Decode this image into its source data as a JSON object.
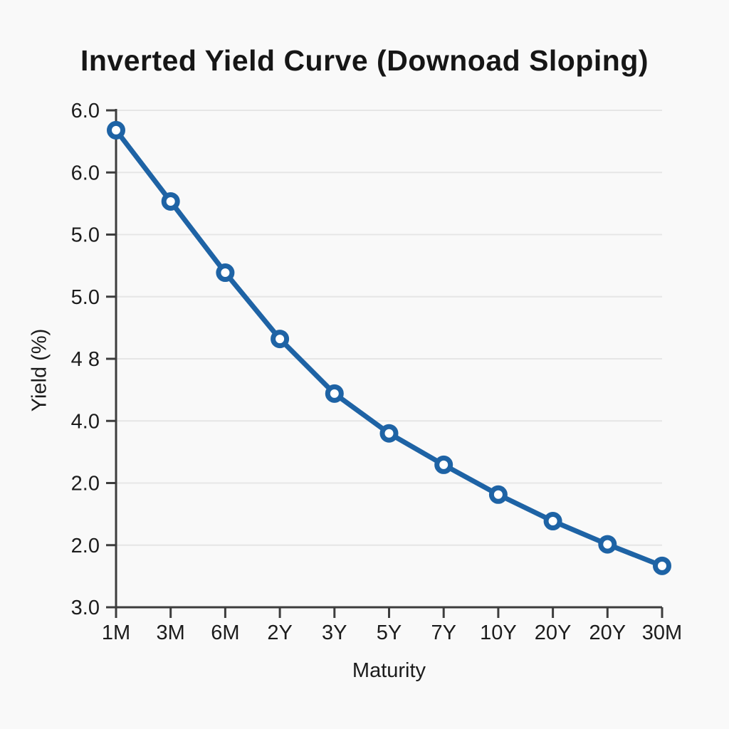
{
  "page": {
    "background": "#f9f9f9"
  },
  "chart_data": {
    "type": "line",
    "title": "Inverted Yield Curve (Downoad Sloping)",
    "xlabel": "Maturity",
    "ylabel": "Yield (%)",
    "categories": [
      "1M",
      "3M",
      "6M",
      "2Y",
      "3Y",
      "5Y",
      "7Y",
      "10Y",
      "20Y",
      "20Y",
      "30M"
    ],
    "series": [
      {
        "name": "Yield",
        "values": [
          5.88,
          5.45,
          5.02,
          4.62,
          4.29,
          4.05,
          3.86,
          3.68,
          3.52,
          3.38,
          3.25
        ]
      }
    ],
    "ylim": [
      3.0,
      6.0
    ],
    "y_tick_labels_top_to_bottom": [
      "6.0",
      "6.0",
      "5.0",
      "5.0",
      "4 8",
      "4.0",
      "2.0",
      "2.0",
      "3.0"
    ],
    "grid": true,
    "legend": false,
    "marker": "open-circle",
    "line_color": "#1e63a5",
    "marker_fill": "#ffffff",
    "axis_color": "#3d3d3d",
    "gridline_color": "#e6e6e6",
    "text_color": "#1c1c1c"
  }
}
